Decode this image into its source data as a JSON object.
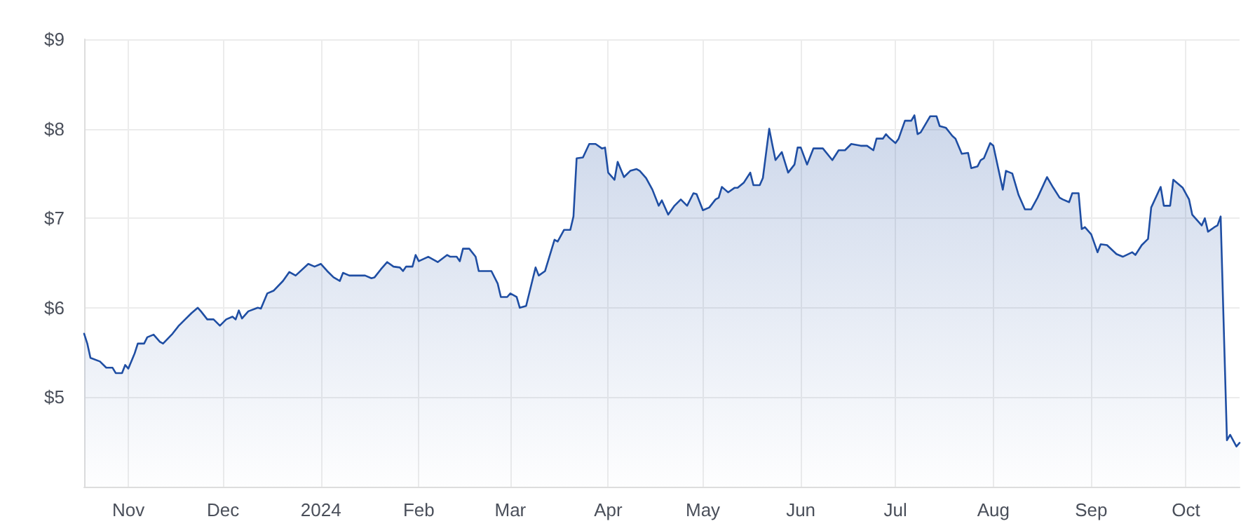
{
  "chart_data": {
    "type": "area",
    "color": "#1f4ea3",
    "grid": true,
    "marker": "none",
    "line_style": "solid",
    "xlim": [
      "2023-10-18",
      "2024-10-18"
    ],
    "xticks": [
      {
        "value": "2023-11-01",
        "label": "Nov"
      },
      {
        "value": "2023-12-01",
        "label": "Dec"
      },
      {
        "value": "2024-01-01",
        "label": "2024"
      },
      {
        "value": "2024-02-01",
        "label": "Feb"
      },
      {
        "value": "2024-03-01",
        "label": "Mar"
      },
      {
        "value": "2024-04-01",
        "label": "Apr"
      },
      {
        "value": "2024-05-01",
        "label": "May"
      },
      {
        "value": "2024-06-01",
        "label": "Jun"
      },
      {
        "value": "2024-07-01",
        "label": "Jul"
      },
      {
        "value": "2024-08-01",
        "label": "Aug"
      },
      {
        "value": "2024-09-01",
        "label": "Sep"
      },
      {
        "value": "2024-10-01",
        "label": "Oct"
      }
    ],
    "ylim": [
      4,
      9
    ],
    "yticks": [
      {
        "value": 5,
        "label": "$5"
      },
      {
        "value": 6,
        "label": "$6"
      },
      {
        "value": 7,
        "label": "$7"
      },
      {
        "value": 8,
        "label": "$8"
      },
      {
        "value": 9,
        "label": "$9"
      }
    ],
    "x": [
      "2023-10-18",
      "2023-10-19",
      "2023-10-20",
      "2023-10-23",
      "2023-10-25",
      "2023-10-27",
      "2023-10-28",
      "2023-10-30",
      "2023-10-31",
      "2023-11-01",
      "2023-11-03",
      "2023-11-04",
      "2023-11-06",
      "2023-11-07",
      "2023-11-09",
      "2023-11-11",
      "2023-11-12",
      "2023-11-15",
      "2023-11-17",
      "2023-11-19",
      "2023-11-21",
      "2023-11-23",
      "2023-11-24",
      "2023-11-26",
      "2023-11-28",
      "2023-11-30",
      "2023-12-02",
      "2023-12-04",
      "2023-12-05",
      "2023-12-06",
      "2023-12-07",
      "2023-12-09",
      "2023-12-12",
      "2023-12-13",
      "2023-12-15",
      "2023-12-17",
      "2023-12-20",
      "2023-12-22",
      "2023-12-24",
      "2023-12-28",
      "2023-12-30",
      "2024-01-01",
      "2024-01-03",
      "2024-01-05",
      "2024-01-07",
      "2024-01-08",
      "2024-01-10",
      "2024-01-15",
      "2024-01-17",
      "2024-01-18",
      "2024-01-20",
      "2024-01-22",
      "2024-01-24",
      "2024-01-26",
      "2024-01-27",
      "2024-01-28",
      "2024-01-30",
      "2024-01-31",
      "2024-02-01",
      "2024-02-04",
      "2024-02-07",
      "2024-02-10",
      "2024-02-11",
      "2024-02-13",
      "2024-02-14",
      "2024-02-15",
      "2024-02-17",
      "2024-02-19",
      "2024-02-20",
      "2024-02-24",
      "2024-02-26",
      "2024-02-27",
      "2024-02-29",
      "2024-03-01",
      "2024-03-03",
      "2024-03-04",
      "2024-03-06",
      "2024-03-09",
      "2024-03-10",
      "2024-03-12",
      "2024-03-15",
      "2024-03-16",
      "2024-03-18",
      "2024-03-20",
      "2024-03-21",
      "2024-03-22",
      "2024-03-24",
      "2024-03-26",
      "2024-03-28",
      "2024-03-30",
      "2024-03-31",
      "2024-04-01",
      "2024-04-03",
      "2024-04-04",
      "2024-04-06",
      "2024-04-08",
      "2024-04-10",
      "2024-04-11",
      "2024-04-13",
      "2024-04-15",
      "2024-04-17",
      "2024-04-18",
      "2024-04-20",
      "2024-04-22",
      "2024-04-24",
      "2024-04-26",
      "2024-04-28",
      "2024-04-29",
      "2024-05-01",
      "2024-05-03",
      "2024-05-05",
      "2024-05-06",
      "2024-05-07",
      "2024-05-08",
      "2024-05-09",
      "2024-05-11",
      "2024-05-12",
      "2024-05-14",
      "2024-05-16",
      "2024-05-17",
      "2024-05-19",
      "2024-05-20",
      "2024-05-22",
      "2024-05-23",
      "2024-05-24",
      "2024-05-26",
      "2024-05-28",
      "2024-05-30",
      "2024-05-31",
      "2024-06-01",
      "2024-06-03",
      "2024-06-05",
      "2024-06-08",
      "2024-06-11",
      "2024-06-13",
      "2024-06-15",
      "2024-06-17",
      "2024-06-20",
      "2024-06-22",
      "2024-06-24",
      "2024-06-25",
      "2024-06-27",
      "2024-06-28",
      "2024-06-29",
      "2024-07-01",
      "2024-07-02",
      "2024-07-04",
      "2024-07-06",
      "2024-07-07",
      "2024-07-08",
      "2024-07-09",
      "2024-07-11",
      "2024-07-12",
      "2024-07-14",
      "2024-07-15",
      "2024-07-17",
      "2024-07-19",
      "2024-07-20",
      "2024-07-22",
      "2024-07-24",
      "2024-07-25",
      "2024-07-27",
      "2024-07-28",
      "2024-07-29",
      "2024-07-31",
      "2024-08-01",
      "2024-08-04",
      "2024-08-05",
      "2024-08-07",
      "2024-08-09",
      "2024-08-11",
      "2024-08-13",
      "2024-08-15",
      "2024-08-18",
      "2024-08-20",
      "2024-08-22",
      "2024-08-23",
      "2024-08-25",
      "2024-08-26",
      "2024-08-28",
      "2024-08-29",
      "2024-08-30",
      "2024-09-01",
      "2024-09-03",
      "2024-09-04",
      "2024-09-06",
      "2024-09-09",
      "2024-09-11",
      "2024-09-14",
      "2024-09-15",
      "2024-09-17",
      "2024-09-19",
      "2024-09-20",
      "2024-09-23",
      "2024-09-24",
      "2024-09-26",
      "2024-09-27",
      "2024-09-30",
      "2024-10-02",
      "2024-10-03",
      "2024-10-06",
      "2024-10-07",
      "2024-10-08",
      "2024-10-10",
      "2024-10-11",
      "2024-10-12",
      "2024-10-14",
      "2024-10-15",
      "2024-10-17",
      "2024-10-18"
    ],
    "values": [
      5.71,
      5.6,
      5.44,
      5.4,
      5.33,
      5.33,
      5.27,
      5.27,
      5.36,
      5.32,
      5.49,
      5.6,
      5.6,
      5.67,
      5.7,
      5.62,
      5.6,
      5.71,
      5.8,
      5.87,
      5.94,
      6.0,
      5.96,
      5.87,
      5.87,
      5.8,
      5.87,
      5.9,
      5.87,
      5.97,
      5.88,
      5.96,
      6.0,
      5.99,
      6.16,
      6.19,
      6.3,
      6.4,
      6.36,
      6.49,
      6.46,
      6.49,
      6.41,
      6.34,
      6.3,
      6.39,
      6.36,
      6.36,
      6.33,
      6.34,
      6.43,
      6.51,
      6.46,
      6.45,
      6.41,
      6.46,
      6.46,
      6.59,
      6.52,
      6.57,
      6.51,
      6.59,
      6.57,
      6.57,
      6.52,
      6.66,
      6.66,
      6.57,
      6.41,
      6.41,
      6.27,
      6.12,
      6.12,
      6.16,
      6.12,
      6.0,
      6.02,
      6.45,
      6.36,
      6.41,
      6.76,
      6.74,
      6.87,
      6.87,
      7.02,
      7.67,
      7.68,
      7.83,
      7.83,
      7.78,
      7.79,
      7.51,
      7.43,
      7.63,
      7.46,
      7.53,
      7.55,
      7.53,
      7.45,
      7.32,
      7.14,
      7.2,
      7.04,
      7.14,
      7.21,
      7.14,
      7.28,
      7.27,
      7.09,
      7.12,
      7.21,
      7.23,
      7.35,
      7.32,
      7.29,
      7.34,
      7.34,
      7.4,
      7.51,
      7.37,
      7.37,
      7.45,
      8.0,
      7.82,
      7.65,
      7.74,
      7.51,
      7.6,
      7.79,
      7.79,
      7.6,
      7.78,
      7.78,
      7.65,
      7.76,
      7.76,
      7.83,
      7.81,
      7.81,
      7.76,
      7.89,
      7.89,
      7.94,
      7.9,
      7.84,
      7.89,
      8.09,
      8.09,
      8.15,
      7.94,
      7.96,
      8.08,
      8.14,
      8.14,
      8.03,
      8.01,
      7.92,
      7.89,
      7.72,
      7.73,
      7.56,
      7.58,
      7.65,
      7.67,
      7.84,
      7.81,
      7.32,
      7.53,
      7.5,
      7.26,
      7.1,
      7.1,
      7.23,
      7.46,
      7.34,
      7.23,
      7.21,
      7.18,
      7.28,
      7.28,
      6.88,
      6.9,
      6.82,
      6.62,
      6.71,
      6.7,
      6.6,
      6.57,
      6.62,
      6.59,
      6.7,
      6.77,
      7.12,
      7.35,
      7.14,
      7.14,
      7.43,
      7.34,
      7.21,
      7.04,
      6.92,
      7.0,
      6.85,
      6.9,
      6.92,
      7.02,
      4.52,
      4.58,
      4.45,
      4.49
    ]
  }
}
